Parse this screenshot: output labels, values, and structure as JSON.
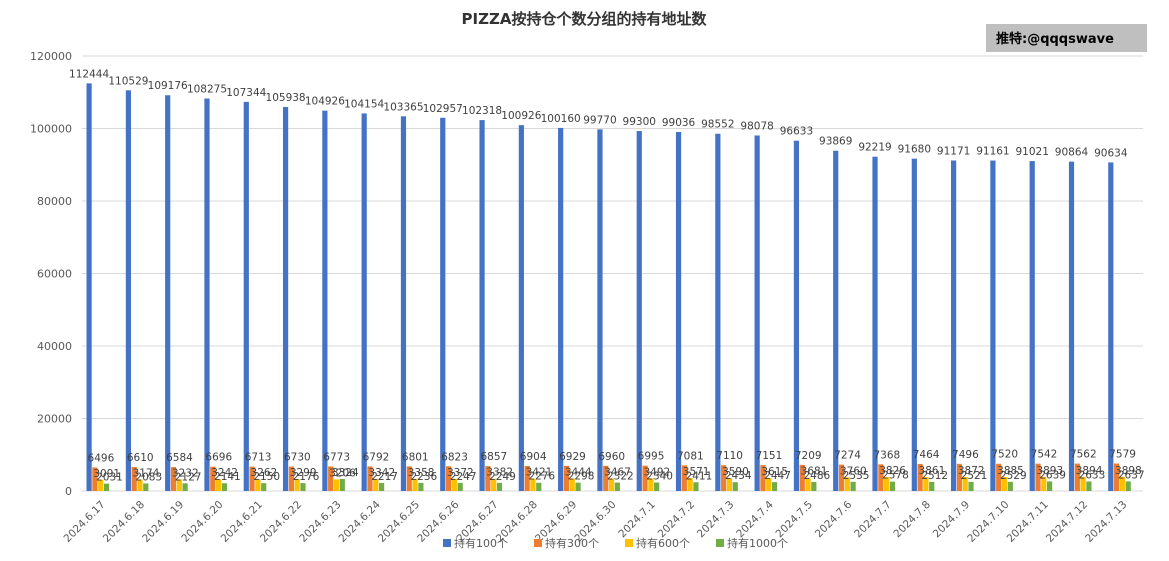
{
  "chart_data": {
    "type": "bar",
    "title": "PIZZA按持仓个数分组的持有地址数",
    "xlabel": "",
    "ylabel": "",
    "ylim": [
      0,
      120000
    ],
    "yticks": [
      0,
      20000,
      40000,
      60000,
      80000,
      100000,
      120000
    ],
    "grid": true,
    "legend_position": "bottom",
    "categories": [
      "2024.6.17",
      "2024.6.18",
      "2024.6.19",
      "2024.6.20",
      "2024.6.21",
      "2024.6.22",
      "2024.6.23",
      "2024.6.24",
      "2024.6.25",
      "2024.6.26",
      "2024.6.27",
      "2024.6.28",
      "2024.6.29",
      "2024.6.30",
      "2024.7.1",
      "2024.7.2",
      "2024.7.3",
      "2024.7.4",
      "2024.7.5",
      "2024.7.6",
      "2024.7.7",
      "2024.7.8",
      "2024.7.9",
      "2024.7.10",
      "2024.7.11",
      "2024.7.12",
      "2024.7.13"
    ],
    "series": [
      {
        "name": "持有100个",
        "color": "#4472c4",
        "values": [
          112444,
          110529,
          109176,
          108275,
          107344,
          105938,
          104926,
          104154,
          103365,
          102957,
          102318,
          100926,
          100160,
          99770,
          99300,
          99036,
          98552,
          98078,
          96633,
          93869,
          92219,
          91680,
          91171,
          91161,
          91021,
          90864,
          90634
        ]
      },
      {
        "name": "持有300个",
        "color": "#ed7d31",
        "values": [
          6496,
          6610,
          6584,
          6696,
          6713,
          6730,
          6773,
          6792,
          6801,
          6823,
          6857,
          6904,
          6929,
          6960,
          6995,
          7081,
          7110,
          7151,
          7209,
          7274,
          7368,
          7464,
          7496,
          7520,
          7542,
          7562,
          7579
        ]
      },
      {
        "name": "持有600个",
        "color": "#ffc000",
        "values": [
          3091,
          3174,
          3232,
          3242,
          3262,
          3299,
          3206,
          3342,
          3358,
          3372,
          3382,
          3421,
          3444,
          3467,
          3492,
          3571,
          3590,
          3615,
          3681,
          3760,
          3826,
          3861,
          3872,
          3885,
          3893,
          3894,
          3898
        ]
      },
      {
        "name": "持有1000个",
        "color": "#70ad47",
        "values": [
          2031,
          2083,
          2127,
          2141,
          2150,
          2176,
          3324,
          2217,
          2236,
          2247,
          2249,
          2276,
          2298,
          2322,
          2340,
          2411,
          2434,
          2447,
          2486,
          2535,
          2578,
          2512,
          2521,
          2529,
          2639,
          2633,
          2637
        ]
      }
    ]
  },
  "badge": {
    "text": "推特:@qqqswave"
  }
}
